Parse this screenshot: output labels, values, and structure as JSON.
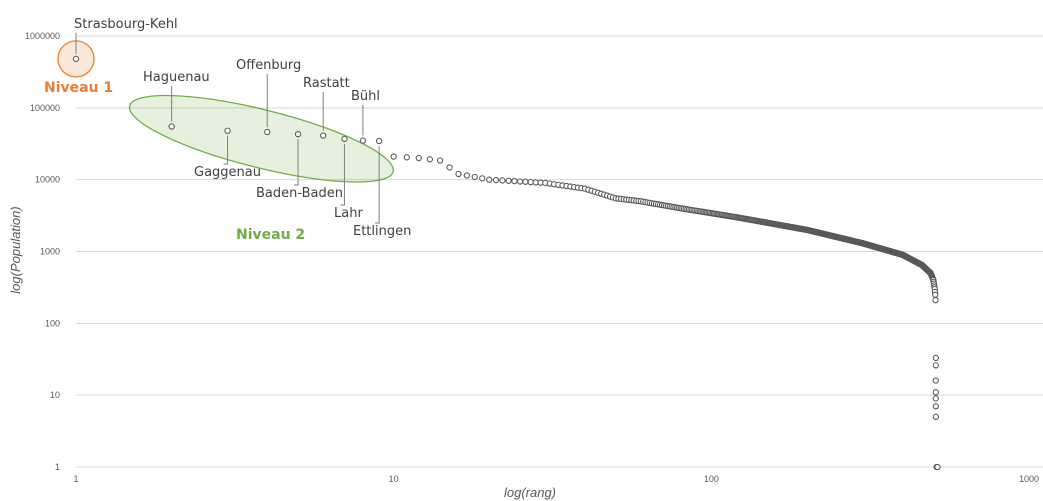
{
  "chart_data": {
    "type": "scatter",
    "xlabel": "log(rang)",
    "ylabel": "log(Population)",
    "x_scale": "log",
    "y_scale": "log",
    "xlim": [
      1,
      1000
    ],
    "ylim": [
      1,
      1000000
    ],
    "x_ticks": [
      "1",
      "10",
      "100",
      "1000"
    ],
    "y_ticks": [
      "1000000",
      "100000",
      "10000",
      "1000",
      "100",
      "10",
      "1"
    ],
    "grid": "horizontal",
    "marker_color": "#595959",
    "level1_color": "#ED7D31",
    "level2_color": "#70AD47",
    "labeled_points": [
      {
        "name": "Strasbourg-Kehl",
        "x": 1,
        "y": 480000
      },
      {
        "name": "Haguenau",
        "x": 2,
        "y": 55000
      },
      {
        "name": "Gaggenau",
        "x": 3,
        "y": 48000
      },
      {
        "name": "Offenburg",
        "x": 4,
        "y": 46000
      },
      {
        "name": "Baden-Baden",
        "x": 5,
        "y": 43000
      },
      {
        "name": "Rastatt",
        "x": 6,
        "y": 41000
      },
      {
        "name": "Lahr",
        "x": 7,
        "y": 37000
      },
      {
        "name": "Bühl",
        "x": 8,
        "y": 35000
      },
      {
        "name": "Ettlingen",
        "x": 9,
        "y": 34500
      }
    ],
    "tail_anchors": [
      [
        10,
        21000
      ],
      [
        12,
        20000
      ],
      [
        14,
        18500
      ],
      [
        16,
        12000
      ],
      [
        20,
        10000
      ],
      [
        30,
        9000
      ],
      [
        40,
        7500
      ],
      [
        50,
        5500
      ],
      [
        60,
        5000
      ],
      [
        80,
        4000
      ],
      [
        120,
        3000
      ],
      [
        200,
        2000
      ],
      [
        300,
        1300
      ],
      [
        400,
        900
      ],
      [
        460,
        650
      ],
      [
        490,
        500
      ],
      [
        500,
        400
      ],
      [
        505,
        300
      ],
      [
        507,
        250
      ],
      [
        508,
        210
      ]
    ],
    "tail_end_rank": 508,
    "outliers": [
      {
        "x": 509,
        "y": 33
      },
      {
        "x": 509,
        "y": 26
      },
      {
        "x": 509,
        "y": 16
      },
      {
        "x": 509,
        "y": 11
      },
      {
        "x": 509,
        "y": 9
      },
      {
        "x": 509,
        "y": 7
      },
      {
        "x": 509,
        "y": 5
      },
      {
        "x": 512,
        "y": 1
      },
      {
        "x": 515,
        "y": 1
      }
    ],
    "annotations": {
      "level1": "Niveau 1",
      "level2": "Niveau 2"
    }
  }
}
